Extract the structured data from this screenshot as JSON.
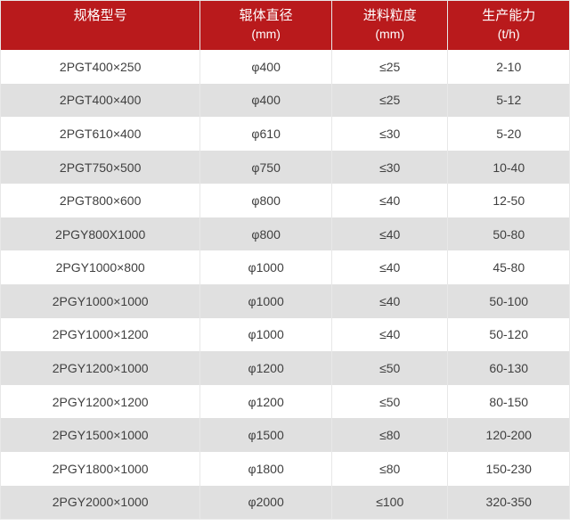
{
  "table": {
    "columns": [
      {
        "label": "规格型号",
        "unit": ""
      },
      {
        "label": "辊体直径",
        "unit": "(mm)"
      },
      {
        "label": "进料粒度",
        "unit": "(mm)"
      },
      {
        "label": "生产能力",
        "unit": "(t/h)"
      }
    ],
    "rows": [
      [
        "2PGT400×250",
        "φ400",
        "≤25",
        "2-10"
      ],
      [
        "2PGT400×400",
        "φ400",
        "≤25",
        "5-12"
      ],
      [
        "2PGT610×400",
        "φ610",
        "≤30",
        "5-20"
      ],
      [
        "2PGT750×500",
        "φ750",
        "≤30",
        "10-40"
      ],
      [
        "2PGT800×600",
        "φ800",
        "≤40",
        "12-50"
      ],
      [
        "2PGY800X1000",
        "φ800",
        "≤40",
        "50-80"
      ],
      [
        "2PGY1000×800",
        "φ1000",
        "≤40",
        "45-80"
      ],
      [
        "2PGY1000×1000",
        "φ1000",
        "≤40",
        "50-100"
      ],
      [
        "2PGY1000×1200",
        "φ1000",
        "≤40",
        "50-120"
      ],
      [
        "2PGY1200×1000",
        "φ1200",
        "≤50",
        "60-130"
      ],
      [
        "2PGY1200×1200",
        "φ1200",
        "≤50",
        "80-150"
      ],
      [
        "2PGY1500×1000",
        "φ1500",
        "≤80",
        "120-200"
      ],
      [
        "2PGY1800×1000",
        "φ1800",
        "≤80",
        "150-230"
      ],
      [
        "2PGY2000×1000",
        "φ2000",
        "≤100",
        "320-350"
      ]
    ]
  },
  "colors": {
    "header_bg": "#b91a1c",
    "header_text": "#ffffff",
    "row_bg": "#ffffff",
    "row_alt_bg": "#e0e0e0",
    "border": "#e8e8e8",
    "text": "#404040"
  },
  "chart_data": {
    "type": "table",
    "title": "",
    "columns": [
      "规格型号",
      "辊体直径 (mm)",
      "进料粒度 (mm)",
      "生产能力 (t/h)"
    ],
    "rows": [
      [
        "2PGT400×250",
        "φ400",
        "≤25",
        "2-10"
      ],
      [
        "2PGT400×400",
        "φ400",
        "≤25",
        "5-12"
      ],
      [
        "2PGT610×400",
        "φ610",
        "≤30",
        "5-20"
      ],
      [
        "2PGT750×500",
        "φ750",
        "≤30",
        "10-40"
      ],
      [
        "2PGT800×600",
        "φ800",
        "≤40",
        "12-50"
      ],
      [
        "2PGY800X1000",
        "φ800",
        "≤40",
        "50-80"
      ],
      [
        "2PGY1000×800",
        "φ1000",
        "≤40",
        "45-80"
      ],
      [
        "2PGY1000×1000",
        "φ1000",
        "≤40",
        "50-100"
      ],
      [
        "2PGY1000×1200",
        "φ1000",
        "≤40",
        "50-120"
      ],
      [
        "2PGY1200×1000",
        "φ1200",
        "≤50",
        "60-130"
      ],
      [
        "2PGY1200×1200",
        "φ1200",
        "≤50",
        "80-150"
      ],
      [
        "2PGY1500×1000",
        "φ1500",
        "≤80",
        "120-200"
      ],
      [
        "2PGY1800×1000",
        "φ1800",
        "≤80",
        "150-230"
      ],
      [
        "2PGY2000×1000",
        "φ2000",
        "≤100",
        "320-350"
      ]
    ],
    "layout": {
      "header_position": "top",
      "zebra_striping": true,
      "alignment": "center"
    }
  }
}
